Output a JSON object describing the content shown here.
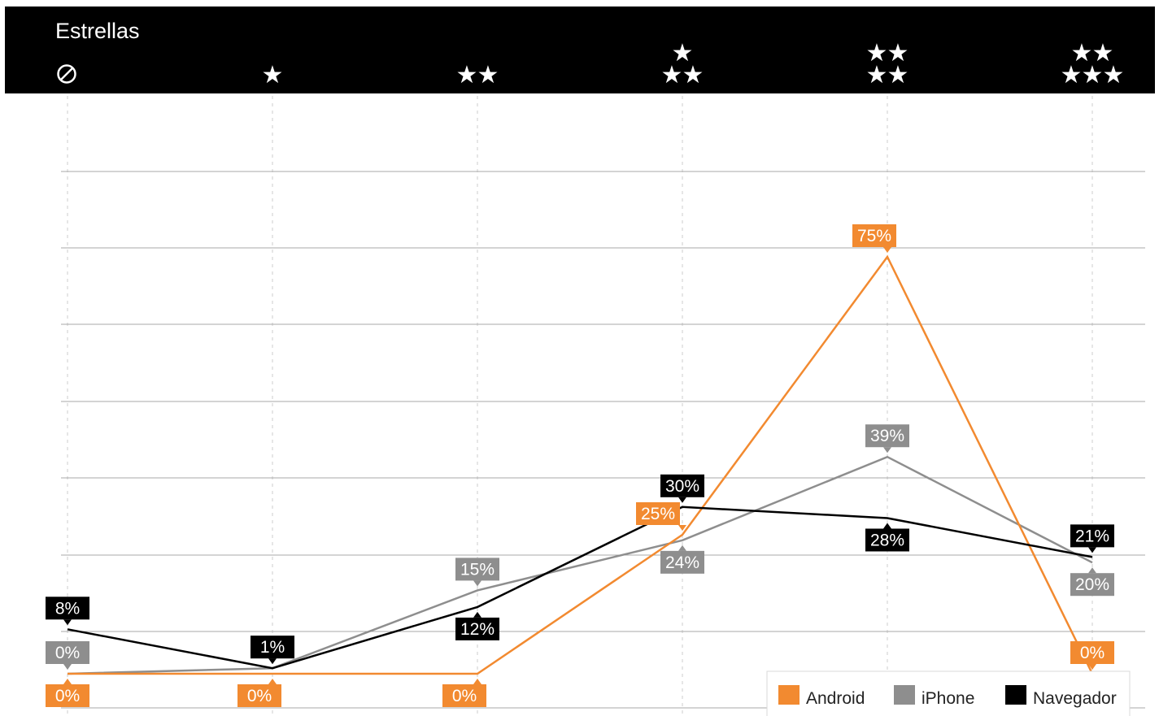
{
  "header": {
    "title": "Estrellas",
    "none_icon": "no-rating-icon"
  },
  "colors": {
    "android": "#f28a30",
    "iphone": "#8e8e8e",
    "navegador": "#000000",
    "header_bg": "#000000",
    "grid": "#a8a8a8"
  },
  "chart_data": {
    "type": "line",
    "title": "",
    "xlabel": "",
    "ylabel": "",
    "categories": [
      "0",
      "1",
      "2",
      "3",
      "4",
      "5"
    ],
    "category_icons": [
      "no-rating-icon",
      "1-star-icon",
      "2-stars-icon",
      "3-stars-icon",
      "4-stars-icon",
      "5-stars-icon"
    ],
    "ylim": [
      0,
      80
    ],
    "grid": true,
    "legend_position": "bottom-right",
    "series": [
      {
        "name": "Android",
        "key": "android",
        "values": [
          0,
          0,
          0,
          25,
          75,
          0
        ],
        "labels": [
          "0%",
          "0%",
          "0%",
          "25%",
          "75%",
          "0%"
        ]
      },
      {
        "name": "iPhone",
        "key": "iphone",
        "values": [
          0,
          1,
          15,
          24,
          39,
          20
        ],
        "labels": [
          "0%",
          "1%",
          "15%",
          "24%",
          "39%",
          "20%"
        ]
      },
      {
        "name": "Navegador",
        "key": "navegador",
        "values": [
          8,
          1,
          12,
          30,
          28,
          21
        ],
        "labels": [
          "8%",
          "1%",
          "12%",
          "30%",
          "28%",
          "21%"
        ]
      }
    ]
  },
  "legend": [
    {
      "label": "Android",
      "key": "android"
    },
    {
      "label": "iPhone",
      "key": "iphone"
    },
    {
      "label": "Navegador",
      "key": "navegador"
    }
  ]
}
